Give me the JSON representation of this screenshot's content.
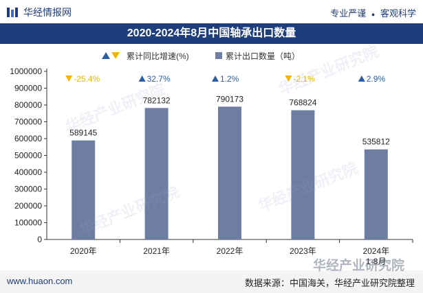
{
  "header": {
    "brand": "华经情报网",
    "slogan_left": "专业严谨",
    "slogan_right": "客观科学",
    "slogan_dot": "●"
  },
  "title": "2020-2024年8月中国轴承出口数量",
  "legend": {
    "growth_label": "累计同比增速(%)",
    "volume_label": "累计出口数量（吨）"
  },
  "chart_data": {
    "type": "bar",
    "categories": [
      "2020年",
      "2021年",
      "2022年",
      "2023年",
      "2024年 1-8月"
    ],
    "series": [
      {
        "name": "累计出口数量（吨）",
        "values": [
          589145,
          782132,
          790173,
          768824,
          535812
        ]
      },
      {
        "name": "累计同比增速(%)",
        "values": [
          -25.4,
          32.7,
          1.2,
          -2.1,
          2.9
        ]
      }
    ],
    "growth_labels": [
      "-25.4%",
      "32.7%",
      "1.2%",
      "-2.1%",
      "2.9%"
    ],
    "y_ticks": [
      "0",
      "100000",
      "200000",
      "300000",
      "400000",
      "500000",
      "600000",
      "700000",
      "800000",
      "900000",
      "1000000"
    ],
    "ylim": [
      0,
      1000000
    ],
    "colors": {
      "bar": "#6e7ea3",
      "up": "#2b5ea8",
      "down": "#f2b600"
    }
  },
  "watermarks": [
    "华经产业研究院",
    "华经产业研究院",
    "华经产业研究院",
    "华经产业研究院"
  ],
  "footer": {
    "site": "www.huaon.com",
    "source": "数据来源：中国海关，华经产业研究院整理",
    "bottom_watermark": "华经产业研究院"
  }
}
